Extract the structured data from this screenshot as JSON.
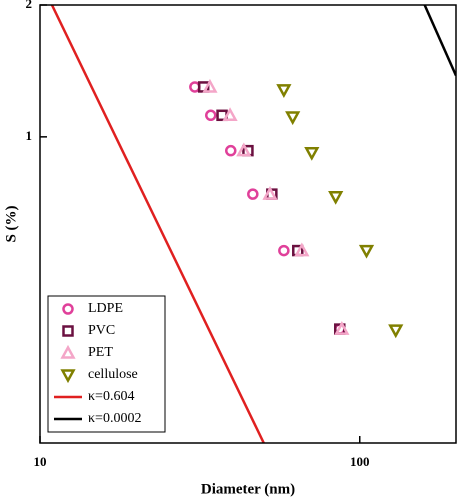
{
  "chart_data": {
    "type": "scatter",
    "x_label": "Diameter (nm)",
    "y_label": "S (%)",
    "log_x": true,
    "log_y": true,
    "xlim": [
      10,
      200
    ],
    "xticks": [
      10,
      100
    ],
    "ylim": [
      0.2,
      2
    ],
    "yticks": [
      1,
      2
    ],
    "legend": "lower left",
    "series": [
      {
        "name": "LDPE",
        "color": "#e0409a",
        "marker": "circle",
        "x": [
          30.5,
          34.2,
          39.5,
          46.3,
          57.9,
          86.6
        ],
        "values": [
          1.3,
          1.12,
          0.93,
          0.74,
          0.55,
          0.364
        ]
      },
      {
        "name": "PVC",
        "color": "#6b1040",
        "marker": "square",
        "x": [
          32.5,
          37.1,
          44.7,
          53.1,
          64,
          86.6
        ],
        "values": [
          1.3,
          1.12,
          0.93,
          0.74,
          0.55,
          0.364
        ]
      },
      {
        "name": "PET",
        "color": "#f4a6c8",
        "marker": "triangle-up",
        "x": [
          34.0,
          39.3,
          43.4,
          52.4,
          65.9,
          87.9
        ],
        "values": [
          1.3,
          1.12,
          0.93,
          0.74,
          0.55,
          0.364
        ]
      },
      {
        "name": "cellulose",
        "color": "#808000",
        "marker": "triangle-down",
        "x": [
          57.9,
          61.7,
          70.8,
          84.1,
          105,
          129.6
        ],
        "values": [
          1.28,
          1.11,
          0.92,
          0.73,
          0.55,
          0.362
        ]
      },
      {
        "name": "κ=0.604",
        "color": "#e02020",
        "marker": "line",
        "x": [
          10.9,
          50.1
        ],
        "values": [
          2,
          0.2
        ]
      },
      {
        "name": "κ=0.0002",
        "color": "#000000",
        "marker": "line",
        "x": [
          159.6,
          200
        ],
        "values": [
          2,
          1.38
        ]
      }
    ]
  }
}
